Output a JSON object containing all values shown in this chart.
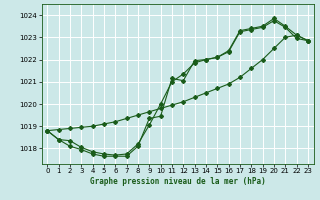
{
  "xlabel": "Graphe pression niveau de la mer (hPa)",
  "xlim": [
    -0.5,
    23.5
  ],
  "ylim": [
    1017.3,
    1024.5
  ],
  "yticks": [
    1018,
    1019,
    1020,
    1021,
    1022,
    1023,
    1024
  ],
  "xticks": [
    0,
    1,
    2,
    3,
    4,
    5,
    6,
    7,
    8,
    9,
    10,
    11,
    12,
    13,
    14,
    15,
    16,
    17,
    18,
    19,
    20,
    21,
    22,
    23
  ],
  "background_color": "#cce8e8",
  "grid_color": "#b0d8d8",
  "line_color": "#1a5c1a",
  "series_linear": [
    1018.8,
    1018.85,
    1018.9,
    1018.95,
    1019.0,
    1019.1,
    1019.2,
    1019.35,
    1019.5,
    1019.65,
    1019.8,
    1019.95,
    1020.1,
    1020.3,
    1020.5,
    1020.7,
    1020.9,
    1021.2,
    1021.6,
    1022.0,
    1022.5,
    1023.0,
    1023.1,
    1022.85
  ],
  "series_wavy1": [
    1018.8,
    1018.4,
    1018.35,
    1018.05,
    1017.85,
    1017.75,
    1017.7,
    1017.75,
    1018.2,
    1019.05,
    1020.0,
    1021.0,
    1021.35,
    1021.85,
    1022.0,
    1022.1,
    1022.35,
    1023.25,
    1023.35,
    1023.45,
    1023.75,
    1023.45,
    1022.95,
    1022.85
  ],
  "series_wavy2": [
    1018.8,
    1018.4,
    1018.1,
    1017.95,
    1017.75,
    1017.65,
    1017.65,
    1017.65,
    1018.1,
    1019.35,
    1019.45,
    1021.15,
    1021.05,
    1021.95,
    1022.0,
    1022.1,
    1022.4,
    1023.3,
    1023.4,
    1023.5,
    1023.85,
    1023.5,
    1023.1,
    1022.85
  ]
}
